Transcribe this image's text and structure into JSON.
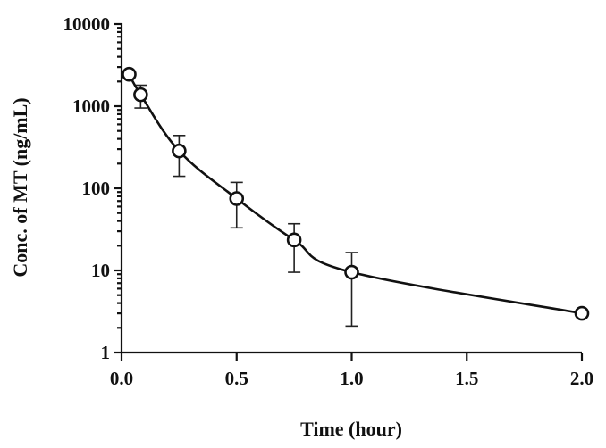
{
  "chart_data": {
    "type": "line",
    "title": "",
    "xlabel": "Time (hour)",
    "ylabel": "Conc. of MT (ng/mL)",
    "xlim": [
      0,
      2
    ],
    "ylim": [
      1,
      10000
    ],
    "y_scale": "log",
    "grid": false,
    "legend": "none",
    "x_ticks": [
      "0.0",
      "0.5",
      "1.0",
      "1.5",
      "2.0"
    ],
    "y_ticks": [
      "1",
      "10",
      "100",
      "1000",
      "10000"
    ],
    "series": [
      {
        "x": [
          0.033,
          0.083,
          0.25,
          0.5,
          0.75,
          1.0,
          2.0
        ],
        "y": [
          2450,
          1380,
          285,
          75,
          23.5,
          9.5,
          3.0
        ],
        "y_err_low": [
          2450,
          950,
          140,
          33,
          9.5,
          2.1,
          3.0
        ],
        "y_err_high": [
          2450,
          1800,
          440,
          118,
          37,
          16.5,
          3.0
        ]
      }
    ],
    "colors": {
      "line": "#111111",
      "marker_fill": "#ffffff"
    }
  }
}
